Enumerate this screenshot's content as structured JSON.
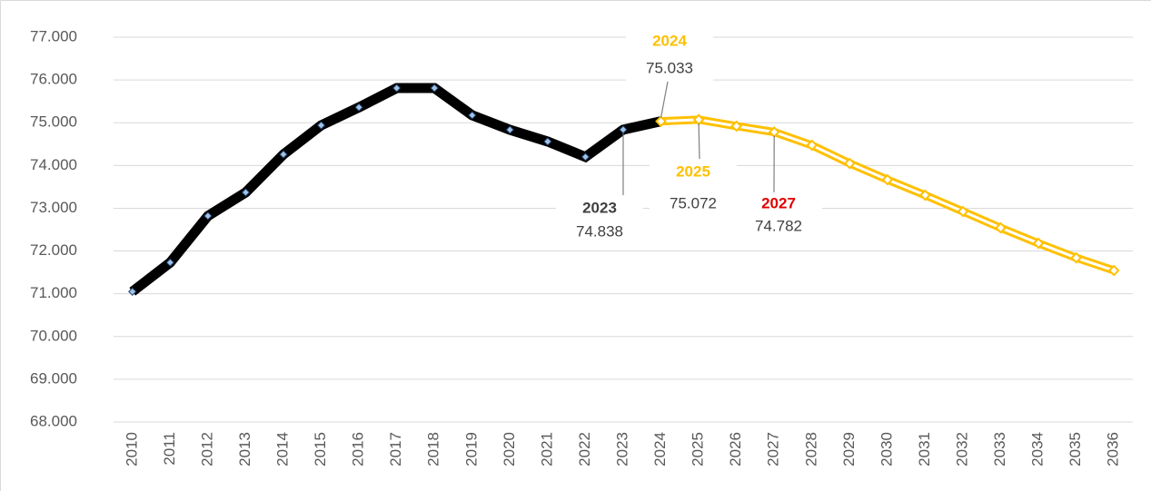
{
  "chart_data": {
    "type": "line",
    "categories": [
      "2010",
      "2011",
      "2012",
      "2013",
      "2014",
      "2015",
      "2016",
      "2017",
      "2018",
      "2019",
      "2020",
      "2021",
      "2022",
      "2023",
      "2024",
      "2025",
      "2026",
      "2027",
      "2028",
      "2029",
      "2030",
      "2031",
      "2032",
      "2033",
      "2034",
      "2035",
      "2036"
    ],
    "series": [
      {
        "color": "#000000",
        "style": "solid",
        "values": [
          71050,
          71730,
          72820,
          73370,
          74260,
          74940,
          75360,
          75810,
          75810,
          75175,
          74835,
          74560,
          74200,
          74838,
          75033,
          null,
          null,
          null,
          null,
          null,
          null,
          null,
          null,
          null,
          null,
          null,
          null
        ]
      },
      {
        "color": "#ffc000",
        "style": "outlined",
        "values": [
          null,
          null,
          null,
          null,
          null,
          null,
          null,
          null,
          null,
          null,
          null,
          null,
          null,
          null,
          75033,
          75072,
          74920,
          74782,
          74473,
          74049,
          73667,
          73306,
          72924,
          72541,
          72180,
          71841,
          71544
        ]
      }
    ],
    "ylim": [
      68000,
      77000
    ],
    "yticks": [
      {
        "value": 68000,
        "label": "68.000"
      },
      {
        "value": 69000,
        "label": "69.000"
      },
      {
        "value": 70000,
        "label": "70.000"
      },
      {
        "value": 71000,
        "label": "71.000"
      },
      {
        "value": 72000,
        "label": "72.000"
      },
      {
        "value": 73000,
        "label": "73.000"
      },
      {
        "value": 74000,
        "label": "74.000"
      },
      {
        "value": 75000,
        "label": "75.000"
      },
      {
        "value": 76000,
        "label": "76.000"
      },
      {
        "value": 77000,
        "label": "77.000"
      }
    ],
    "grid": true,
    "annotations": [
      {
        "year": "2024",
        "label": "75.033",
        "color": "#ffc000"
      },
      {
        "year": "2023",
        "label": "74.838",
        "color": "#404040"
      },
      {
        "year": "2025",
        "label": "75.072",
        "color": "#ffc000"
      },
      {
        "year": "2027",
        "label": "74.782",
        "color": "#e00000"
      }
    ]
  }
}
